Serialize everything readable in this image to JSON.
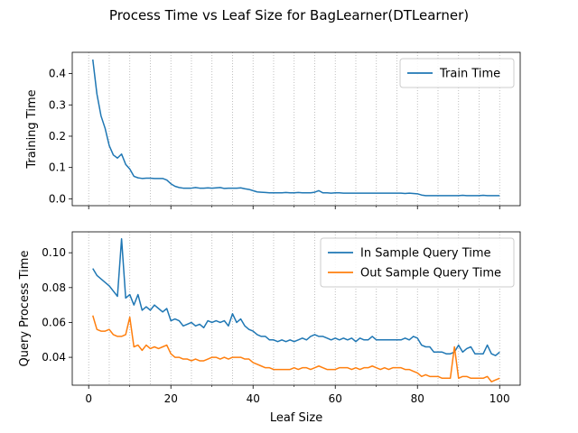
{
  "figure": {
    "title": "Process Time vs Leaf Size for BagLearner(DTLearner)"
  },
  "colors": {
    "blue": "#1f77b4",
    "orange": "#ff7f0e",
    "grid": "#b0b0b0"
  },
  "chart_data": [
    {
      "type": "line",
      "title": "",
      "xlabel": "",
      "ylabel": "Training Time",
      "xlim": [
        -4,
        105
      ],
      "ylim": [
        -0.022,
        0.468
      ],
      "xticks": [
        0,
        20,
        40,
        60,
        80,
        100
      ],
      "xtick_labels": [
        "",
        "",
        "",
        "",
        "",
        ""
      ],
      "yticks": [
        0.0,
        0.1,
        0.2,
        0.3,
        0.4
      ],
      "ytick_labels": [
        "0.0",
        "0.1",
        "0.2",
        "0.3",
        "0.4"
      ],
      "grid": "x-dotted-every-5",
      "legend": "top-right",
      "series": [
        {
          "name": "Train Time",
          "color": "#1f77b4",
          "x": [
            1,
            2,
            3,
            4,
            5,
            6,
            7,
            8,
            9,
            10,
            11,
            12,
            13,
            14,
            15,
            16,
            17,
            18,
            19,
            20,
            21,
            22,
            23,
            24,
            25,
            26,
            27,
            28,
            29,
            30,
            31,
            32,
            33,
            34,
            35,
            36,
            37,
            38,
            39,
            40,
            41,
            42,
            43,
            44,
            45,
            46,
            47,
            48,
            49,
            50,
            51,
            52,
            53,
            54,
            55,
            56,
            57,
            58,
            59,
            60,
            61,
            62,
            63,
            64,
            65,
            66,
            67,
            68,
            69,
            70,
            71,
            72,
            73,
            74,
            75,
            76,
            77,
            78,
            79,
            80,
            81,
            82,
            83,
            84,
            85,
            86,
            87,
            88,
            89,
            90,
            91,
            92,
            93,
            94,
            95,
            96,
            97,
            98,
            99,
            100
          ],
          "y": [
            0.445,
            0.335,
            0.265,
            0.225,
            0.17,
            0.14,
            0.13,
            0.143,
            0.11,
            0.095,
            0.072,
            0.067,
            0.065,
            0.066,
            0.066,
            0.065,
            0.065,
            0.065,
            0.06,
            0.048,
            0.04,
            0.036,
            0.034,
            0.034,
            0.034,
            0.036,
            0.034,
            0.034,
            0.035,
            0.034,
            0.035,
            0.036,
            0.033,
            0.034,
            0.034,
            0.034,
            0.035,
            0.032,
            0.03,
            0.026,
            0.022,
            0.021,
            0.02,
            0.019,
            0.019,
            0.019,
            0.019,
            0.02,
            0.019,
            0.019,
            0.02,
            0.019,
            0.019,
            0.019,
            0.021,
            0.026,
            0.019,
            0.019,
            0.018,
            0.019,
            0.019,
            0.018,
            0.018,
            0.018,
            0.018,
            0.018,
            0.018,
            0.018,
            0.018,
            0.018,
            0.018,
            0.018,
            0.018,
            0.018,
            0.018,
            0.018,
            0.017,
            0.018,
            0.017,
            0.016,
            0.012,
            0.01,
            0.01,
            0.01,
            0.01,
            0.01,
            0.01,
            0.01,
            0.01,
            0.01,
            0.011,
            0.01,
            0.01,
            0.01,
            0.01,
            0.011,
            0.01,
            0.01,
            0.01,
            0.01
          ]
        }
      ]
    },
    {
      "type": "line",
      "title": "",
      "xlabel": "Leaf Size",
      "ylabel": "Query Process Time",
      "xlim": [
        -4,
        105
      ],
      "ylim": [
        0.024,
        0.112
      ],
      "xticks": [
        0,
        20,
        40,
        60,
        80,
        100
      ],
      "xtick_labels": [
        "0",
        "20",
        "40",
        "60",
        "80",
        "100"
      ],
      "yticks": [
        0.04,
        0.06,
        0.08,
        0.1
      ],
      "ytick_labels": [
        "0.04",
        "0.06",
        "0.08",
        "0.10"
      ],
      "grid": "x-dotted-every-5",
      "legend": "top-right",
      "series": [
        {
          "name": "In Sample Query Time",
          "color": "#1f77b4",
          "x": [
            1,
            2,
            3,
            4,
            5,
            6,
            7,
            8,
            9,
            10,
            11,
            12,
            13,
            14,
            15,
            16,
            17,
            18,
            19,
            20,
            21,
            22,
            23,
            24,
            25,
            26,
            27,
            28,
            29,
            30,
            31,
            32,
            33,
            34,
            35,
            36,
            37,
            38,
            39,
            40,
            41,
            42,
            43,
            44,
            45,
            46,
            47,
            48,
            49,
            50,
            51,
            52,
            53,
            54,
            55,
            56,
            57,
            58,
            59,
            60,
            61,
            62,
            63,
            64,
            65,
            66,
            67,
            68,
            69,
            70,
            71,
            72,
            73,
            74,
            75,
            76,
            77,
            78,
            79,
            80,
            81,
            82,
            83,
            84,
            85,
            86,
            87,
            88,
            89,
            90,
            91,
            92,
            93,
            94,
            95,
            96,
            97,
            98,
            99,
            100
          ],
          "y": [
            0.091,
            0.087,
            0.085,
            0.083,
            0.081,
            0.078,
            0.075,
            0.108,
            0.074,
            0.076,
            0.07,
            0.076,
            0.067,
            0.069,
            0.067,
            0.07,
            0.068,
            0.066,
            0.068,
            0.061,
            0.062,
            0.061,
            0.058,
            0.059,
            0.06,
            0.058,
            0.059,
            0.057,
            0.061,
            0.06,
            0.061,
            0.06,
            0.061,
            0.058,
            0.065,
            0.06,
            0.062,
            0.058,
            0.056,
            0.055,
            0.053,
            0.052,
            0.052,
            0.05,
            0.05,
            0.049,
            0.05,
            0.049,
            0.05,
            0.049,
            0.05,
            0.051,
            0.05,
            0.052,
            0.053,
            0.052,
            0.052,
            0.051,
            0.05,
            0.051,
            0.05,
            0.051,
            0.05,
            0.051,
            0.049,
            0.051,
            0.05,
            0.05,
            0.052,
            0.05,
            0.05,
            0.05,
            0.05,
            0.05,
            0.05,
            0.05,
            0.051,
            0.05,
            0.052,
            0.051,
            0.047,
            0.046,
            0.046,
            0.043,
            0.043,
            0.043,
            0.042,
            0.042,
            0.043,
            0.047,
            0.043,
            0.045,
            0.046,
            0.042,
            0.042,
            0.042,
            0.047,
            0.042,
            0.041,
            0.043
          ]
        },
        {
          "name": "Out Sample Query Time",
          "color": "#ff7f0e",
          "x": [
            1,
            2,
            3,
            4,
            5,
            6,
            7,
            8,
            9,
            10,
            11,
            12,
            13,
            14,
            15,
            16,
            17,
            18,
            19,
            20,
            21,
            22,
            23,
            24,
            25,
            26,
            27,
            28,
            29,
            30,
            31,
            32,
            33,
            34,
            35,
            36,
            37,
            38,
            39,
            40,
            41,
            42,
            43,
            44,
            45,
            46,
            47,
            48,
            49,
            50,
            51,
            52,
            53,
            54,
            55,
            56,
            57,
            58,
            59,
            60,
            61,
            62,
            63,
            64,
            65,
            66,
            67,
            68,
            69,
            70,
            71,
            72,
            73,
            74,
            75,
            76,
            77,
            78,
            79,
            80,
            81,
            82,
            83,
            84,
            85,
            86,
            87,
            88,
            89,
            90,
            91,
            92,
            93,
            94,
            95,
            96,
            97,
            98,
            99,
            100
          ],
          "y": [
            0.064,
            0.056,
            0.055,
            0.055,
            0.056,
            0.053,
            0.052,
            0.052,
            0.053,
            0.063,
            0.046,
            0.047,
            0.044,
            0.047,
            0.045,
            0.046,
            0.045,
            0.046,
            0.047,
            0.042,
            0.04,
            0.04,
            0.039,
            0.039,
            0.038,
            0.039,
            0.038,
            0.038,
            0.039,
            0.04,
            0.04,
            0.039,
            0.04,
            0.039,
            0.04,
            0.04,
            0.04,
            0.039,
            0.039,
            0.037,
            0.036,
            0.035,
            0.034,
            0.034,
            0.033,
            0.033,
            0.033,
            0.033,
            0.033,
            0.034,
            0.033,
            0.034,
            0.034,
            0.033,
            0.034,
            0.035,
            0.034,
            0.033,
            0.033,
            0.033,
            0.034,
            0.034,
            0.034,
            0.033,
            0.034,
            0.033,
            0.034,
            0.034,
            0.035,
            0.034,
            0.033,
            0.034,
            0.033,
            0.034,
            0.034,
            0.034,
            0.033,
            0.033,
            0.032,
            0.031,
            0.029,
            0.03,
            0.029,
            0.029,
            0.029,
            0.028,
            0.028,
            0.028,
            0.046,
            0.028,
            0.029,
            0.029,
            0.028,
            0.028,
            0.028,
            0.028,
            0.029,
            0.026,
            0.027,
            0.028
          ]
        }
      ]
    }
  ]
}
